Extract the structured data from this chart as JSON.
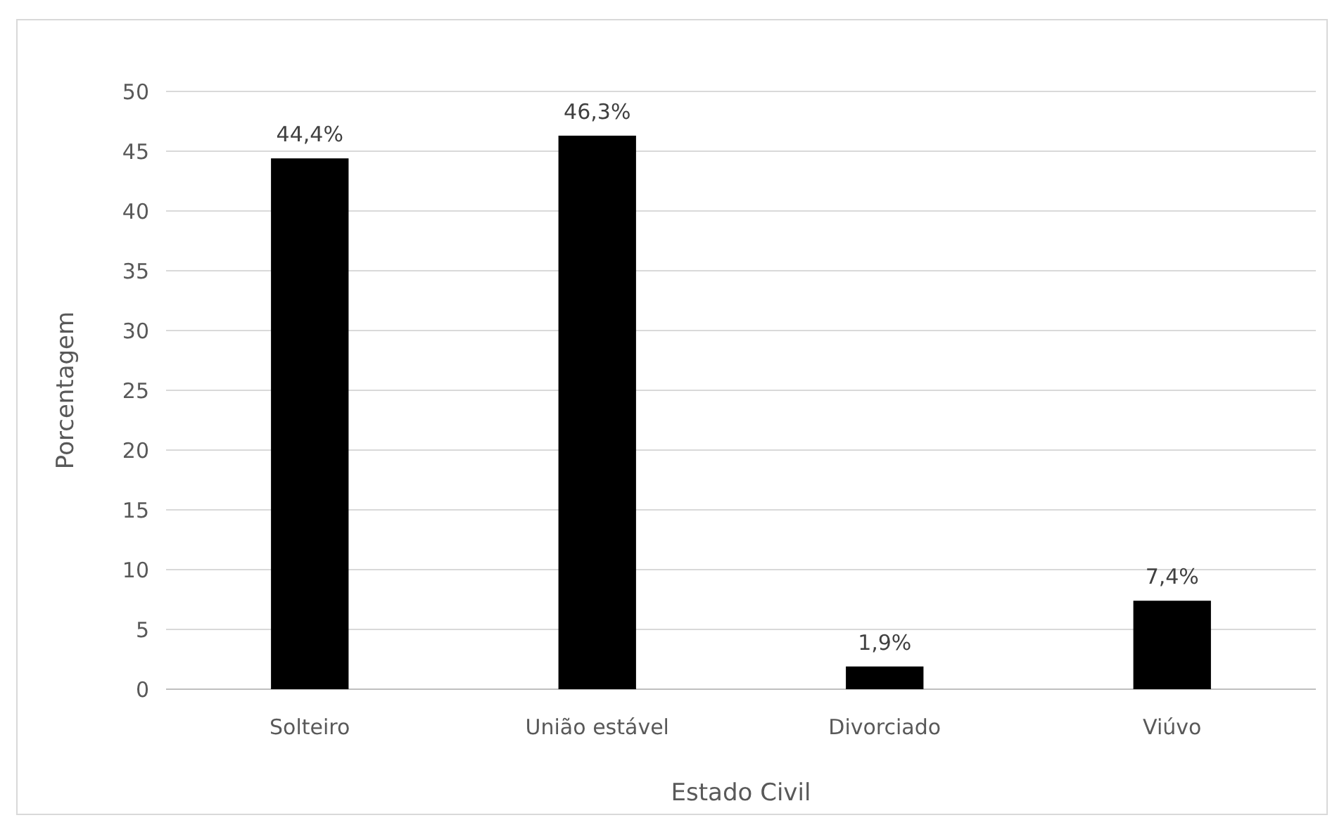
{
  "chart_data": {
    "type": "bar",
    "xlabel": "Estado Civil",
    "ylabel": "Porcentagem",
    "categories": [
      "Solteiro",
      "União estável",
      "Divorciado",
      "Viúvo"
    ],
    "values": [
      44.4,
      46.3,
      1.9,
      7.4
    ],
    "color": "#000000",
    "value_labels": [
      "44,4%",
      "46,3%",
      "1,9%",
      "7,4%"
    ],
    "ylim": [
      0,
      50
    ],
    "yticks": [
      0,
      5,
      10,
      15,
      20,
      25,
      30,
      35,
      40,
      45,
      50
    ],
    "grid": "y"
  }
}
